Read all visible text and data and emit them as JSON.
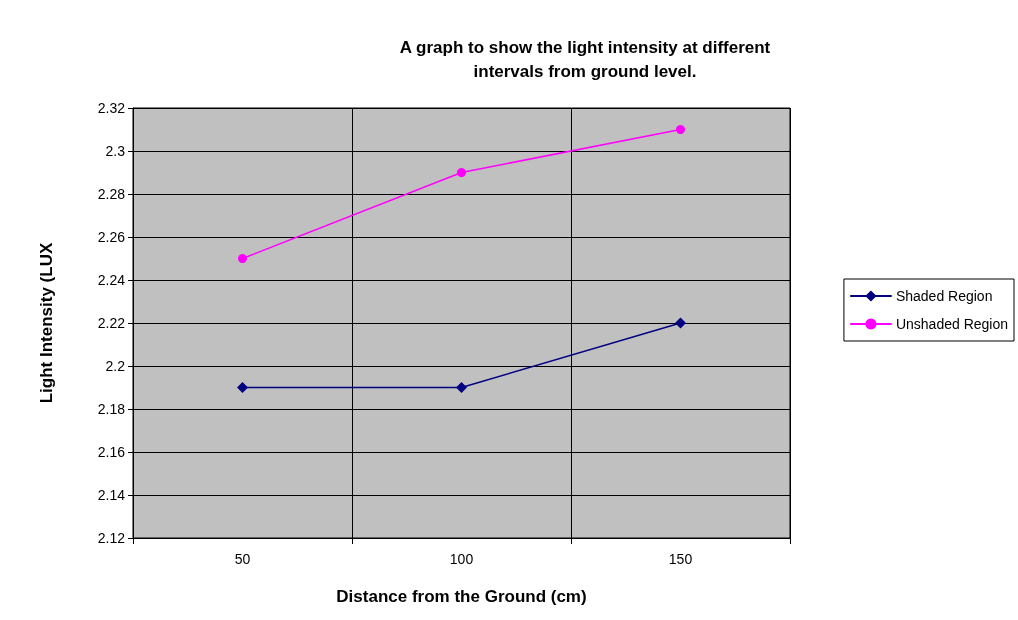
{
  "chart_data": {
    "type": "line",
    "title": "A graph to show the light intensity at different\nintervals from ground level.",
    "xlabel": "Distance from the Ground (cm)",
    "ylabel": "Light Intensity (LUX",
    "categories": [
      "50",
      "100",
      "150"
    ],
    "series": [
      {
        "name": "Shaded Region",
        "color": "#000080",
        "marker": "diamond",
        "values": [
          2.19,
          2.19,
          2.22
        ]
      },
      {
        "name": "Unshaded Region",
        "color": "#ff00ff",
        "marker": "circle",
        "values": [
          2.25,
          2.29,
          2.31
        ]
      }
    ],
    "ylim": [
      2.12,
      2.32
    ],
    "yticks": [
      2.12,
      2.14,
      2.16,
      2.18,
      2.2,
      2.22,
      2.24,
      2.26,
      2.28,
      2.3,
      2.32
    ],
    "grid": true,
    "legend": "right"
  }
}
